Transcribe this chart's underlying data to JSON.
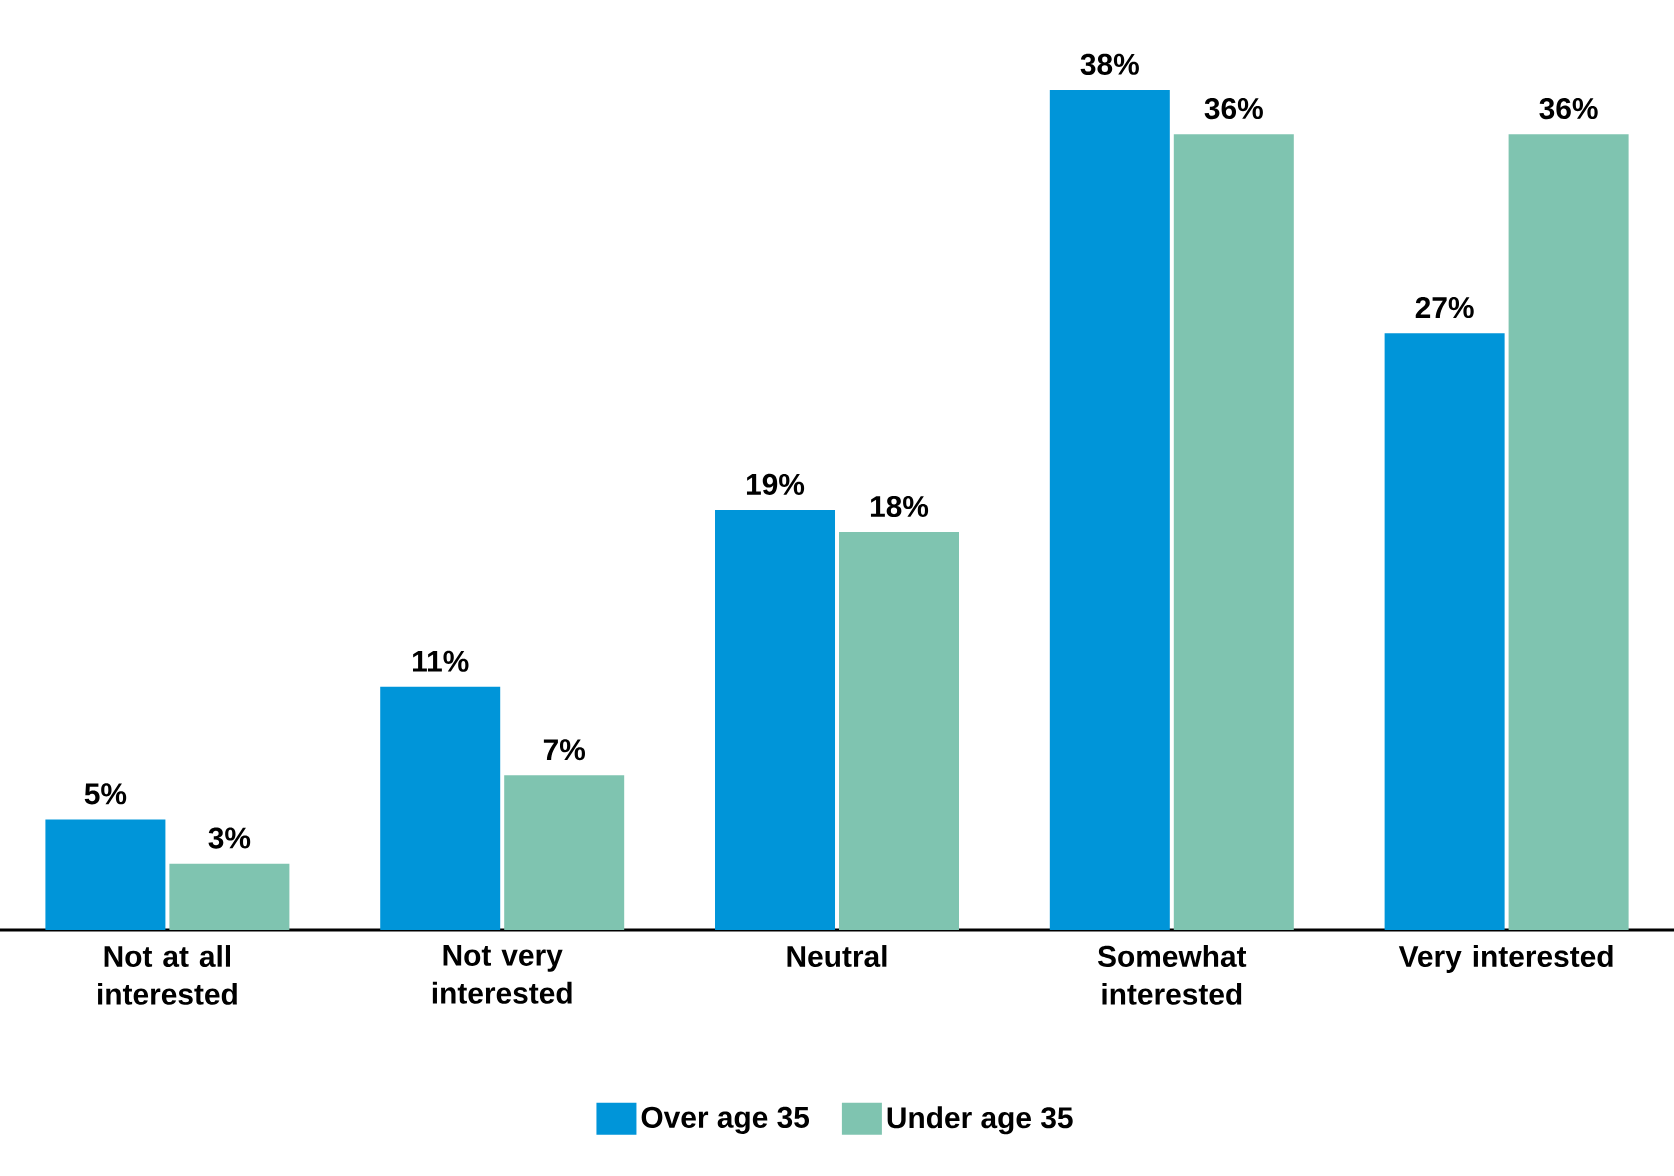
{
  "chart_data": {
    "type": "bar",
    "categories": [
      "Not at all interested",
      "Not very interested",
      "Neutral",
      "Somewhat interested",
      "Very interested"
    ],
    "series": [
      {
        "name": "Over age 35",
        "color": "#0095d9",
        "values": [
          5,
          11,
          19,
          38,
          27
        ],
        "value_labels": [
          "5%",
          "11%",
          "19%",
          "38%",
          "27%"
        ]
      },
      {
        "name": "Under age 35",
        "color": "#7fc4b0",
        "values": [
          3,
          7,
          18,
          36,
          36
        ],
        "value_labels": [
          "3%",
          "7%",
          "18%",
          "36%",
          "36%"
        ]
      }
    ],
    "legend": "bottom"
  }
}
